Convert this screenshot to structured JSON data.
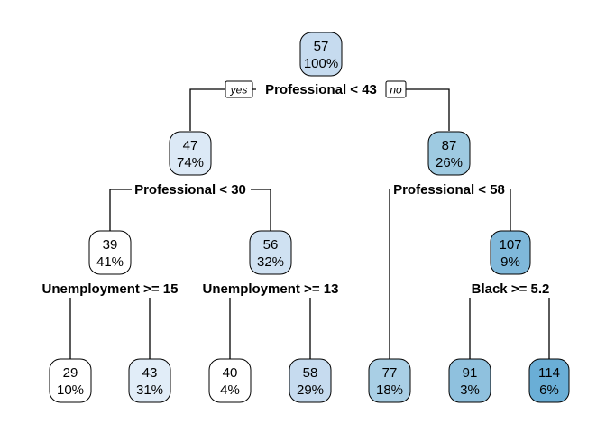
{
  "tree": {
    "branch_labels": {
      "yes": "yes",
      "no": "no"
    },
    "colors": {
      "min_fill": "#ffffff",
      "max_fill": "#6aaed6"
    },
    "nodes": [
      {
        "id": "n1",
        "value": "57",
        "percent": "100%",
        "fill": "#c6dbef"
      },
      {
        "id": "n2",
        "value": "47",
        "percent": "74%",
        "fill": "#dce9f6"
      },
      {
        "id": "n3",
        "value": "87",
        "percent": "26%",
        "fill": "#9ecae1"
      },
      {
        "id": "n4",
        "value": "39",
        "percent": "41%",
        "fill": "#ffffff"
      },
      {
        "id": "n5",
        "value": "56",
        "percent": "32%",
        "fill": "#cfe1f2"
      },
      {
        "id": "n7",
        "value": "107",
        "percent": "9%",
        "fill": "#7fb8da"
      },
      {
        "id": "n8",
        "value": "29",
        "percent": "10%",
        "fill": "#ffffff"
      },
      {
        "id": "n9",
        "value": "43",
        "percent": "31%",
        "fill": "#e1edf8"
      },
      {
        "id": "n10",
        "value": "40",
        "percent": "4%",
        "fill": "#ffffff"
      },
      {
        "id": "n11",
        "value": "58",
        "percent": "29%",
        "fill": "#c6dbef"
      },
      {
        "id": "n6",
        "value": "77",
        "percent": "18%",
        "fill": "#a9cfe5"
      },
      {
        "id": "n14",
        "value": "91",
        "percent": "3%",
        "fill": "#8fc1de"
      },
      {
        "id": "n15",
        "value": "114",
        "percent": "6%",
        "fill": "#6aaed6"
      }
    ],
    "splits": [
      {
        "id": "s1",
        "label": "Professional < 43"
      },
      {
        "id": "s2",
        "label": "Professional < 30"
      },
      {
        "id": "s3",
        "label": "Professional < 58"
      },
      {
        "id": "s4",
        "label": "Unemployment >= 15"
      },
      {
        "id": "s5",
        "label": "Unemployment >= 13"
      },
      {
        "id": "s7",
        "label": "Black >= 5.2"
      }
    ]
  }
}
